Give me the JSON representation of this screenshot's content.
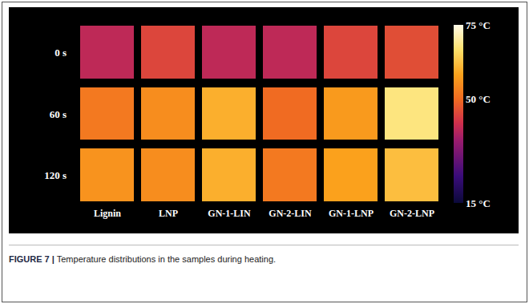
{
  "chart_data": {
    "type": "heatmap",
    "x": [
      "Lignin",
      "LNP",
      "GN-1-LIN",
      "GN-2-LIN",
      "GN-1-LNP",
      "GN-2-LNP"
    ],
    "y": [
      "0 s",
      "60 s",
      "120 s"
    ],
    "z": [
      [
        40,
        45,
        40,
        40,
        45,
        46
      ],
      [
        52,
        55,
        60,
        50,
        57,
        68
      ],
      [
        56,
        55,
        60,
        52,
        58,
        62
      ]
    ],
    "colorbar": {
      "range": [
        15,
        75
      ],
      "ticks": [
        {
          "value": 15,
          "label": "15 °C"
        },
        {
          "value": 50,
          "label": "50 °C"
        },
        {
          "value": 75,
          "label": "75 °C"
        }
      ]
    }
  },
  "caption": {
    "label": "FIGURE 7 |",
    "text": "Temperature distributions in the samples during heating."
  }
}
